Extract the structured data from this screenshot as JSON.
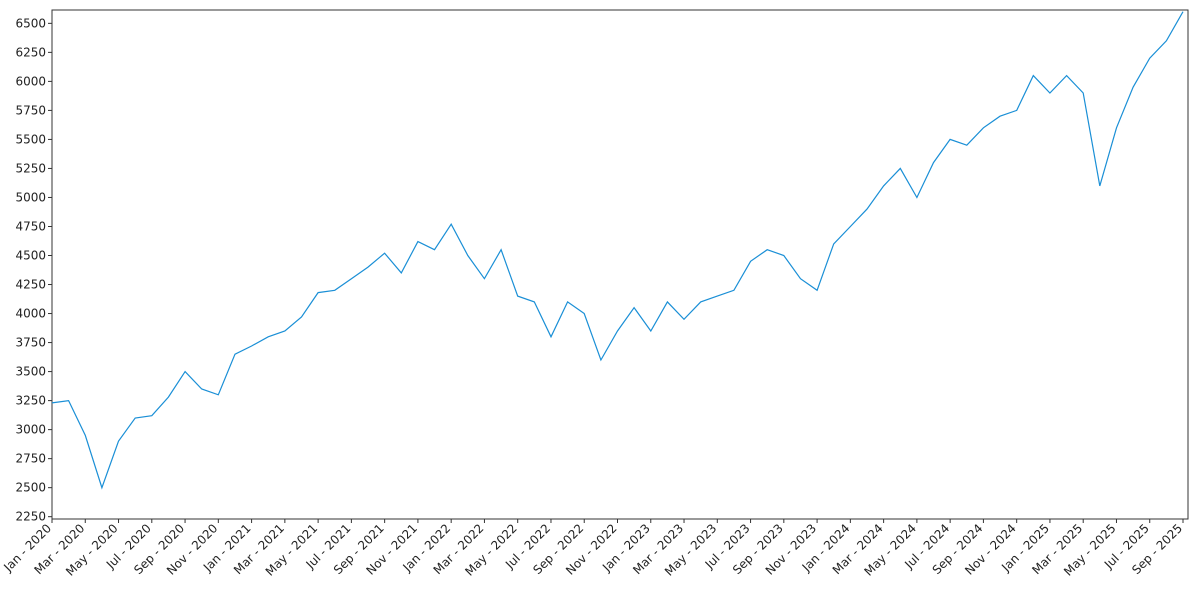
{
  "chart_data": {
    "type": "line",
    "categories": [
      "Jan - 2020",
      null,
      "Mar - 2020",
      null,
      "May - 2020",
      null,
      "Jul - 2020",
      null,
      "Sep - 2020",
      null,
      "Nov - 2020",
      null,
      "Jan - 2021",
      null,
      "Mar - 2021",
      null,
      "May - 2021",
      null,
      "Jul - 2021",
      null,
      "Sep - 2021",
      null,
      "Nov - 2021",
      null,
      "Jan - 2022",
      null,
      "Mar - 2022",
      null,
      "May - 2022",
      null,
      "Jul - 2022",
      null,
      "Sep - 2022",
      null,
      "Nov - 2022",
      null,
      "Jan - 2023",
      null,
      "Mar - 2023",
      null,
      "May - 2023",
      null,
      "Jul - 2023",
      null,
      "Sep - 2023",
      null,
      "Nov - 2023",
      null,
      "Jan - 2024",
      null,
      "Mar - 2024",
      null,
      "May - 2024",
      null,
      "Jul - 2024",
      null,
      "Sep - 2024",
      null,
      "Nov - 2024",
      null,
      "Jan - 2025",
      null,
      "Mar - 2025",
      null,
      "May - 2025",
      null,
      "Jul - 2025",
      null,
      "Sep - 2025"
    ],
    "values": [
      3230,
      3250,
      2950,
      2500,
      2900,
      3100,
      3120,
      3280,
      3500,
      3350,
      3300,
      3650,
      3720,
      3800,
      3850,
      3970,
      4180,
      4200,
      4300,
      4400,
      4520,
      4350,
      4620,
      4550,
      4770,
      4500,
      4300,
      4550,
      4150,
      4100,
      3800,
      4100,
      4000,
      3600,
      3850,
      4050,
      3850,
      4100,
      3950,
      4100,
      4150,
      4200,
      4450,
      4550,
      4500,
      4300,
      4200,
      4600,
      4750,
      4900,
      5100,
      5250,
      5000,
      5300,
      5500,
      5450,
      5600,
      5700,
      5750,
      6050,
      5900,
      6050,
      5900,
      5100,
      5600,
      5950,
      6200,
      6350,
      6600
    ],
    "color": "#1a8fd6",
    "ylim": [
      2230,
      6615
    ],
    "yticks": [
      2250,
      2500,
      2750,
      3000,
      3250,
      3500,
      3750,
      4000,
      4250,
      4500,
      4750,
      5000,
      5250,
      5500,
      5750,
      6000,
      6250,
      6500
    ],
    "grid": false
  }
}
